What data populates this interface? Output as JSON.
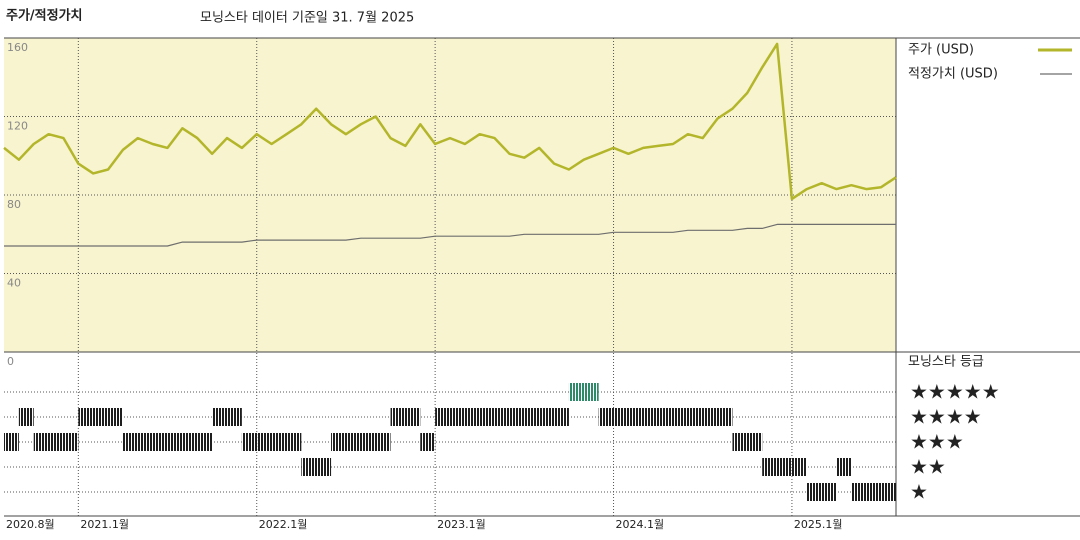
{
  "chart_data": {
    "type": "line",
    "title": "주가/적정가치",
    "subtitle": "모닝스타 데이터 기준일 31. 7월 2025",
    "x": [
      "2020-08",
      "2020-09",
      "2020-10",
      "2020-11",
      "2020-12",
      "2021-01",
      "2021-02",
      "2021-03",
      "2021-04",
      "2021-05",
      "2021-06",
      "2021-07",
      "2021-08",
      "2021-09",
      "2021-10",
      "2021-11",
      "2021-12",
      "2022-01",
      "2022-02",
      "2022-03",
      "2022-04",
      "2022-05",
      "2022-06",
      "2022-07",
      "2022-08",
      "2022-09",
      "2022-10",
      "2022-11",
      "2022-12",
      "2023-01",
      "2023-02",
      "2023-03",
      "2023-04",
      "2023-05",
      "2023-06",
      "2023-07",
      "2023-08",
      "2023-09",
      "2023-10",
      "2023-11",
      "2023-12",
      "2024-01",
      "2024-02",
      "2024-03",
      "2024-04",
      "2024-05",
      "2024-06",
      "2024-07",
      "2024-08",
      "2024-09",
      "2024-10",
      "2024-11",
      "2024-12",
      "2025-01",
      "2025-02",
      "2025-03",
      "2025-04",
      "2025-05",
      "2025-06",
      "2025-07",
      "2025-08"
    ],
    "series": [
      {
        "name": "주가 (USD)",
        "color": "#b3b52a",
        "values": [
          104,
          98,
          106,
          111,
          109,
          96,
          91,
          93,
          103,
          109,
          106,
          104,
          114,
          109,
          101,
          109,
          104,
          111,
          106,
          111,
          116,
          124,
          116,
          111,
          116,
          120,
          109,
          105,
          116,
          106,
          109,
          106,
          111,
          109,
          101,
          99,
          104,
          96,
          93,
          98,
          101,
          104,
          101,
          104,
          105,
          106,
          111,
          109,
          119,
          124,
          132,
          145,
          157,
          78,
          83,
          86,
          83,
          85,
          83,
          84,
          89
        ]
      },
      {
        "name": "적정가치 (USD)",
        "color": "#6e6e6e",
        "values": [
          54,
          54,
          54,
          54,
          54,
          54,
          54,
          54,
          54,
          54,
          54,
          54,
          56,
          56,
          56,
          56,
          56,
          57,
          57,
          57,
          57,
          57,
          57,
          57,
          58,
          58,
          58,
          58,
          58,
          59,
          59,
          59,
          59,
          59,
          59,
          60,
          60,
          60,
          60,
          60,
          60,
          61,
          61,
          61,
          61,
          61,
          62,
          62,
          62,
          62,
          63,
          63,
          65,
          65,
          65,
          65,
          65,
          65,
          65,
          65,
          65
        ]
      }
    ],
    "xlim": [
      "2020-08",
      "2025-08"
    ],
    "xticks": [
      {
        "value": "2020-08",
        "label": "2020.8월"
      },
      {
        "value": "2021-01",
        "label": "2021.1월"
      },
      {
        "value": "2022-01",
        "label": "2022.1월"
      },
      {
        "value": "2023-01",
        "label": "2023.1월"
      },
      {
        "value": "2024-01",
        "label": "2024.1월"
      },
      {
        "value": "2025-01",
        "label": "2025.1월"
      }
    ],
    "ylim": [
      0,
      160
    ],
    "yticks": [
      0,
      40,
      80,
      120,
      160
    ],
    "grid": true,
    "rating_title": "모닝스타 등급",
    "rating_labels": [
      "★★★★★",
      "★★★★",
      "★★★",
      "★★",
      "★"
    ],
    "rating_colors": [
      "#1e1e1e",
      "#1e1e1e",
      "#1e1e1e",
      "#1e1e1e",
      "#2f8a6a"
    ],
    "ratings": [
      {
        "start": "2020-08",
        "end": "2020-09",
        "stars": 3
      },
      {
        "start": "2020-09",
        "end": "2020-10",
        "stars": 4
      },
      {
        "start": "2020-10",
        "end": "2021-01",
        "stars": 3
      },
      {
        "start": "2021-01",
        "end": "2021-04",
        "stars": 4
      },
      {
        "start": "2021-04",
        "end": "2021-10",
        "stars": 3
      },
      {
        "start": "2021-10",
        "end": "2021-12",
        "stars": 4
      },
      {
        "start": "2021-12",
        "end": "2022-04",
        "stars": 3
      },
      {
        "start": "2022-04",
        "end": "2022-06",
        "stars": 2
      },
      {
        "start": "2022-06",
        "end": "2022-10",
        "stars": 3
      },
      {
        "start": "2022-10",
        "end": "2022-12",
        "stars": 4
      },
      {
        "start": "2022-12",
        "end": "2023-01",
        "stars": 3
      },
      {
        "start": "2023-01",
        "end": "2023-10",
        "stars": 4
      },
      {
        "start": "2023-10",
        "end": "2023-12",
        "stars": 5
      },
      {
        "start": "2023-12",
        "end": "2024-09",
        "stars": 4
      },
      {
        "start": "2024-09",
        "end": "2024-11",
        "stars": 3
      },
      {
        "start": "2024-11",
        "end": "2025-02",
        "stars": 2
      },
      {
        "start": "2025-02",
        "end": "2025-04",
        "stars": 1
      },
      {
        "start": "2025-04",
        "end": "2025-05",
        "stars": 2
      },
      {
        "start": "2025-05",
        "end": "2025-08",
        "stars": 1
      }
    ]
  }
}
